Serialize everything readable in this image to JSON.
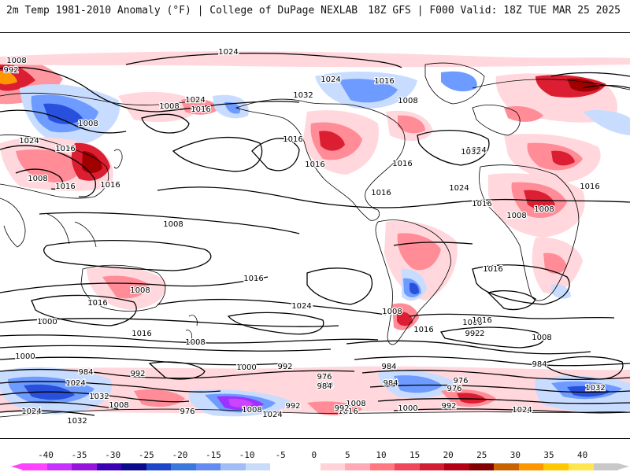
{
  "header": {
    "title": "2m Temp 1981-2010 Anomaly (°F) | College of DuPage NEXLAB",
    "run_info": "18Z GFS | F000 Valid: 18Z TUE MAR 25 2025"
  },
  "map": {
    "isobar_labels": [
      "1024",
      "1008",
      "992",
      "1024",
      "1032",
      "1016",
      "1008",
      "1024",
      "1016",
      "1008",
      "1024",
      "1032",
      "1024",
      "1016",
      "1008",
      "1008",
      "1016",
      "1016",
      "1016",
      "1016",
      "1024",
      "1008",
      "1008",
      "1016",
      "1016",
      "1016",
      "1008",
      "1008",
      "1016",
      "1024",
      "1008",
      "1016",
      "1016",
      "1016",
      "1000",
      "1016",
      "1016",
      "992",
      "1008",
      "1008",
      "1000",
      "1024",
      "984",
      "992",
      "1000",
      "992",
      "984",
      "992",
      "1000",
      "976",
      "976",
      "984",
      "1024",
      "1024",
      "1032",
      "1008",
      "984",
      "1032",
      "976",
      "976",
      "984",
      "992",
      "992",
      "1000",
      "1016",
      "1008",
      "1024",
      "1008",
      "1032",
      "1024",
      "1016",
      "992",
      "984",
      "1008",
      "1000"
    ],
    "colors": {
      "warm_light": "#ffd7dc",
      "warm_mid": "#ff8c96",
      "warm_strong": "#dc1e32",
      "warm_extreme": "#a00000",
      "hot": "#ff9600",
      "cool_light": "#c8dcff",
      "cool_mid": "#6e9bff",
      "cool_strong": "#2850dc",
      "cold": "#9b32ff",
      "land_outline": "#000000",
      "isobar": "#000000"
    }
  },
  "colorbar": {
    "ticks": [
      "-40",
      "-35",
      "-30",
      "-25",
      "-20",
      "-15",
      "-10",
      "-5",
      "0",
      "5",
      "10",
      "15",
      "20",
      "25",
      "30",
      "35",
      "40"
    ],
    "bins": [
      "#ff44ff",
      "#c832ff",
      "#9614dc",
      "#3c00b4",
      "#0a0a8c",
      "#1e46c8",
      "#3c78dc",
      "#648cf0",
      "#a0bef5",
      "#c8dcfa",
      "#ffffff",
      "#ffffff",
      "#ffd2d7",
      "#ffaab4",
      "#ff7882",
      "#f0465a",
      "#d21e32",
      "#b40014",
      "#820000",
      "#c86400",
      "#ff9600",
      "#ffc800",
      "#ffe650",
      "#c8c8c8"
    ]
  }
}
